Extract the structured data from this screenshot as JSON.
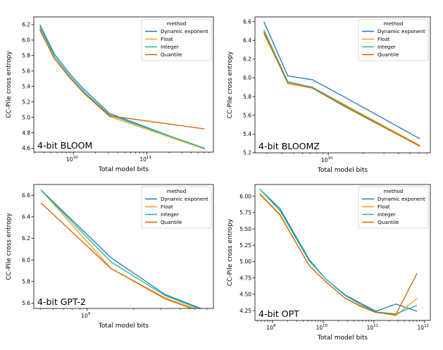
{
  "legend": {
    "title": "method",
    "entries": [
      "Dynamic exponent",
      "Float",
      "Integer",
      "Quantile"
    ]
  },
  "colors": {
    "Dynamic exponent": "#1f77b4",
    "Float": "#ff9f0e",
    "Integer": "#17b8a6",
    "Quantile": "#d95f02"
  },
  "chart_data": [
    {
      "type": "line",
      "tag": "4-bit BLOOM",
      "xlabel": "Total model bits",
      "ylabel": "CC-Pile cross entropy",
      "xscale": "log",
      "xlim": [
        2900000000.0,
        800000000000.0
      ],
      "ylim": [
        4.55,
        6.3
      ],
      "xticks": [
        {
          "v": 10000000000.0,
          "label": "10"
        },
        {
          "v": 100000000000.0,
          "label": "11"
        }
      ],
      "yticks": [
        4.6,
        4.8,
        5.0,
        5.2,
        5.4,
        5.6,
        5.8,
        6.0,
        6.2
      ],
      "ytick_labels": [
        "4.6",
        "4.8",
        "5.0",
        "5.2",
        "5.4",
        "5.6",
        "5.8",
        "6.0",
        "6.2"
      ],
      "legend_position": "top-right",
      "x": [
        3500000000.0,
        5500000000.0,
        9000000000.0,
        14000000000.0,
        31000000000.0,
        610000000000.0
      ],
      "series": [
        {
          "name": "Dynamic exponent",
          "values": [
            6.2,
            5.82,
            5.56,
            5.36,
            5.05,
            4.59
          ]
        },
        {
          "name": "Float",
          "values": [
            6.13,
            5.76,
            5.51,
            5.31,
            5.01,
            4.59
          ]
        },
        {
          "name": "Integer",
          "values": [
            6.17,
            5.79,
            5.53,
            5.33,
            5.03,
            4.6
          ]
        },
        {
          "name": "Quantile",
          "values": [
            6.14,
            5.76,
            5.51,
            5.31,
            5.02,
            4.85
          ]
        }
      ]
    },
    {
      "type": "line",
      "tag": "4-bit BLOOMZ",
      "xlabel": "Total model bits",
      "ylabel": "CC-Pile cross entropy",
      "xscale": "log",
      "xlim": [
        2350000000.0,
        75000000000.0
      ],
      "ylim": [
        5.2,
        6.65
      ],
      "xticks": [
        {
          "v": 10000000000.0,
          "label": "10"
        }
      ],
      "yticks": [
        5.2,
        5.4,
        5.6,
        5.8,
        6.0,
        6.2,
        6.4,
        6.6
      ],
      "ytick_labels": [
        "5.2",
        "5.4",
        "5.6",
        "5.8",
        "6.0",
        "6.2",
        "6.4",
        "6.6"
      ],
      "legend_position": "top-right",
      "x": [
        2800000000.0,
        4500000000.0,
        7300000000.0,
        14000000000.0,
        61000000000.0
      ],
      "series": [
        {
          "name": "Dynamic exponent",
          "values": [
            6.6,
            6.02,
            5.98,
            5.79,
            5.35
          ]
        },
        {
          "name": "Float",
          "values": [
            6.47,
            5.95,
            5.9,
            5.71,
            5.28
          ]
        },
        {
          "name": "Integer",
          "values": [
            6.51,
            5.96,
            5.9,
            5.7,
            5.27
          ]
        },
        {
          "name": "Quantile",
          "values": [
            6.49,
            5.94,
            5.89,
            5.69,
            5.27
          ]
        }
      ]
    },
    {
      "type": "line",
      "tag": "4-bit GPT-2",
      "xlabel": "Total model bits",
      "ylabel": "CC-Pile cross entropy",
      "xscale": "log",
      "xlim": [
        450000000.0,
        6600000000.0
      ],
      "ylim": [
        5.55,
        6.7
      ],
      "xticks": [
        {
          "v": 1000000000.0,
          "label": "9"
        }
      ],
      "yticks": [
        5.6,
        5.8,
        6.0,
        6.2,
        6.4,
        6.6
      ],
      "ytick_labels": [
        "5.6",
        "5.8",
        "6.0",
        "6.2",
        "6.4",
        "6.6"
      ],
      "legend_position": "top-right",
      "x": [
        500000000.0,
        1430000000.0,
        3200000000.0,
        6200000000.0
      ],
      "series": [
        {
          "name": "Dynamic exponent",
          "values": [
            6.65,
            6.02,
            5.68,
            5.52
          ]
        },
        {
          "name": "Float",
          "values": [
            6.65,
            5.92,
            5.65,
            5.5
          ]
        },
        {
          "name": "Integer",
          "values": [
            6.65,
            5.98,
            5.67,
            5.51
          ]
        },
        {
          "name": "Quantile",
          "values": [
            6.53,
            5.92,
            5.64,
            5.49
          ]
        }
      ]
    },
    {
      "type": "line",
      "tag": "4-bit OPT",
      "xlabel": "Total model bits",
      "ylabel": "CC-Pile cross entropy",
      "xscale": "log",
      "xlim": [
        450000000.0,
        1300000000000.0
      ],
      "ylim": [
        4.1,
        6.18
      ],
      "xticks": [
        {
          "v": 1000000000.0,
          "label": "9"
        },
        {
          "v": 10000000000.0,
          "label": "10"
        },
        {
          "v": 100000000000.0,
          "label": "11"
        },
        {
          "v": 1000000000000.0,
          "label": "12"
        }
      ],
      "yticks": [
        4.25,
        4.5,
        4.75,
        5.0,
        5.25,
        5.5,
        5.75,
        6.0
      ],
      "ytick_labels": [
        "4.25",
        "4.50",
        "4.75",
        "5.00",
        "5.25",
        "5.50",
        "5.75",
        "6.00"
      ],
      "legend_position": "top-right",
      "x": [
        560000000.0,
        1400000000.0,
        5300000000.0,
        11000000000.0,
        27000000000.0,
        53000000000.0,
        110000000000.0,
        270000000000.0,
        710000000000.0
      ],
      "series": [
        {
          "name": "Dynamic exponent",
          "values": [
            6.11,
            5.81,
            5.03,
            4.74,
            4.49,
            4.37,
            4.24,
            4.35,
            4.24
          ]
        },
        {
          "name": "Float",
          "values": [
            6.03,
            5.71,
            4.94,
            4.7,
            4.44,
            4.33,
            4.23,
            4.17,
            4.44
          ]
        },
        {
          "name": "Integer",
          "values": [
            6.11,
            5.78,
            5.01,
            4.74,
            4.48,
            4.35,
            4.23,
            4.2,
            4.33
          ]
        },
        {
          "name": "Quantile",
          "values": [
            6.04,
            5.72,
            4.94,
            4.7,
            4.44,
            4.32,
            4.22,
            4.19,
            4.82
          ]
        }
      ]
    }
  ]
}
